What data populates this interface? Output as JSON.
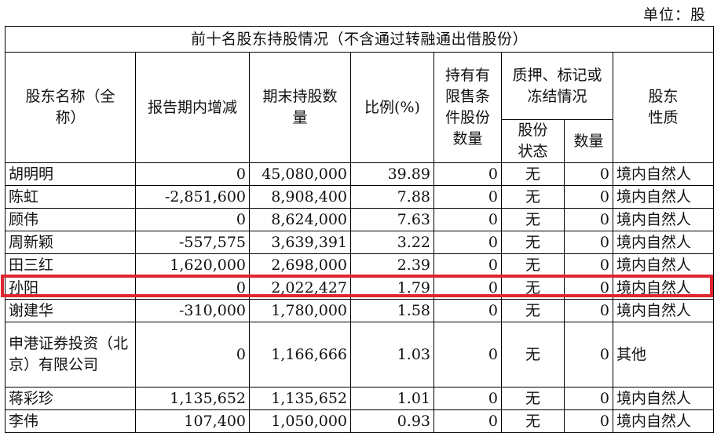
{
  "unit_label": "单位：股",
  "table_title": "前十名股东持股情况（不含通过转融通出借股份）",
  "headers": {
    "name": "股东名称（全称）",
    "change": "报告期内增减",
    "end_qty": "期末持股数量",
    "ratio": "比例(%)",
    "restricted": "持有有限售条件股份数量",
    "pledge_group": "质押、标记或冻结情况",
    "pledge_status": "股份状态",
    "pledge_qty": "数量",
    "nature": "股东性质"
  },
  "rows": [
    {
      "name": "胡明明",
      "change": "0",
      "end_qty": "45,080,000",
      "ratio": "39.89",
      "restricted": "0",
      "status": "无",
      "pledge_qty": "0",
      "nature": "境内自然人"
    },
    {
      "name": "陈虹",
      "change": "-2,851,600",
      "end_qty": "8,908,400",
      "ratio": "7.88",
      "restricted": "0",
      "status": "无",
      "pledge_qty": "0",
      "nature": "境内自然人"
    },
    {
      "name": "顾伟",
      "change": "0",
      "end_qty": "8,624,000",
      "ratio": "7.63",
      "restricted": "0",
      "status": "无",
      "pledge_qty": "0",
      "nature": "境内自然人"
    },
    {
      "name": "周新颖",
      "change": "-557,575",
      "end_qty": "3,639,391",
      "ratio": "3.22",
      "restricted": "0",
      "status": "无",
      "pledge_qty": "0",
      "nature": "境内自然人"
    },
    {
      "name": "田三红",
      "change": "1,620,000",
      "end_qty": "2,698,000",
      "ratio": "2.39",
      "restricted": "0",
      "status": "无",
      "pledge_qty": "0",
      "nature": "境内自然人"
    },
    {
      "name": "孙阳",
      "change": "0",
      "end_qty": "2,022,427",
      "ratio": "1.79",
      "restricted": "0",
      "status": "无",
      "pledge_qty": "0",
      "nature": "境内自然人"
    },
    {
      "name": "谢建华",
      "change": "-310,000",
      "end_qty": "1,780,000",
      "ratio": "1.58",
      "restricted": "0",
      "status": "无",
      "pledge_qty": "0",
      "nature": "境内自然人"
    },
    {
      "name": "申港证券投资（北京）有限公司",
      "change": "0",
      "end_qty": "1,166,666",
      "ratio": "1.03",
      "restricted": "0",
      "status": "无",
      "pledge_qty": "0",
      "nature": "其他"
    },
    {
      "name": "蒋彩珍",
      "change": "1,135,652",
      "end_qty": "1,135,652",
      "ratio": "1.01",
      "restricted": "0",
      "status": "无",
      "pledge_qty": "0",
      "nature": "境内自然人"
    },
    {
      "name": "李伟",
      "change": "107,400",
      "end_qty": "1,050,000",
      "ratio": "0.93",
      "restricted": "0",
      "status": "无",
      "pledge_qty": "0",
      "nature": "境内自然人"
    }
  ],
  "highlight_color": "#e0262f"
}
